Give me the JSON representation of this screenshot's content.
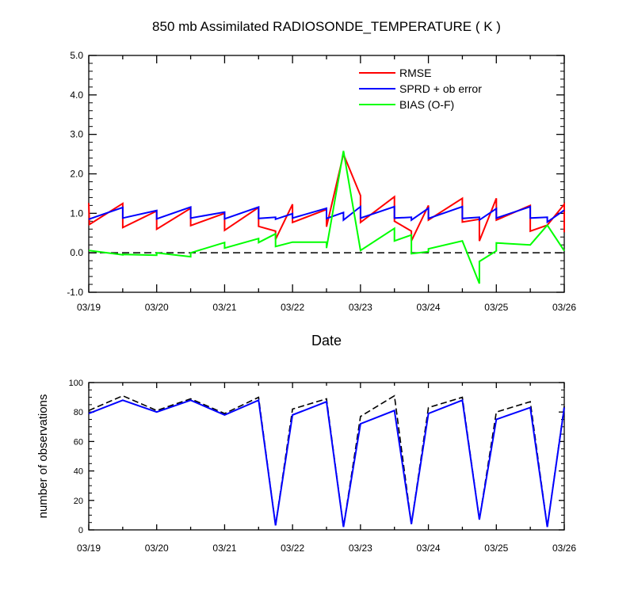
{
  "chart_data": [
    {
      "type": "line",
      "title": "850 mb Assimilated RADIOSONDE_TEMPERATURE ( K )",
      "xlabel": "Date",
      "ylabel": "",
      "x_tick_labels": [
        "03/19",
        "03/20",
        "03/21",
        "03/22",
        "03/23",
        "03/24",
        "03/25",
        "03/26"
      ],
      "xlim": [
        0,
        7
      ],
      "ylim": [
        -1.0,
        5.0
      ],
      "y_ticks": [
        -1.0,
        0.0,
        1.0,
        2.0,
        3.0,
        4.0,
        5.0
      ],
      "y_tick_labels": [
        "-1.0",
        "0.0",
        "1.0",
        "2.0",
        "3.0",
        "4.0",
        "5.0"
      ],
      "reference_line": 0.0,
      "legend_position": "top-right",
      "series": [
        {
          "name": "RMSE",
          "color": "#ff0000",
          "points": [
            [
              0.0,
              1.26
            ],
            [
              0.01,
              0.72
            ],
            [
              0.5,
              1.25
            ],
            [
              0.5,
              0.64
            ],
            [
              1.0,
              1.06
            ],
            [
              1.0,
              0.6
            ],
            [
              1.5,
              1.13
            ],
            [
              1.5,
              0.69
            ],
            [
              2.0,
              1.0
            ],
            [
              2.0,
              0.57
            ],
            [
              2.5,
              1.15
            ],
            [
              2.5,
              0.67
            ],
            [
              2.75,
              0.55
            ],
            [
              2.75,
              0.34
            ],
            [
              3.0,
              1.23
            ],
            [
              3.0,
              0.77
            ],
            [
              3.5,
              1.1
            ],
            [
              3.5,
              0.66
            ],
            [
              3.75,
              2.5
            ],
            [
              4.0,
              1.45
            ],
            [
              4.0,
              0.77
            ],
            [
              4.5,
              1.42
            ],
            [
              4.5,
              0.8
            ],
            [
              4.75,
              0.55
            ],
            [
              4.75,
              0.3
            ],
            [
              5.0,
              1.2
            ],
            [
              5.0,
              0.83
            ],
            [
              5.5,
              1.38
            ],
            [
              5.5,
              0.78
            ],
            [
              5.75,
              0.85
            ],
            [
              5.75,
              0.3
            ],
            [
              6.0,
              1.38
            ],
            [
              6.0,
              0.83
            ],
            [
              6.5,
              1.2
            ],
            [
              6.5,
              0.55
            ],
            [
              6.75,
              0.7
            ],
            [
              7.0,
              1.23
            ],
            [
              7.0,
              0.52
            ]
          ]
        },
        {
          "name": "SPRD + ob error",
          "color": "#0000ff",
          "points": [
            [
              0.0,
              0.85
            ],
            [
              0.5,
              1.15
            ],
            [
              0.5,
              0.88
            ],
            [
              1.0,
              1.07
            ],
            [
              1.0,
              0.86
            ],
            [
              1.5,
              1.16
            ],
            [
              1.5,
              0.88
            ],
            [
              2.0,
              1.03
            ],
            [
              2.0,
              0.86
            ],
            [
              2.5,
              1.16
            ],
            [
              2.5,
              0.87
            ],
            [
              2.75,
              0.9
            ],
            [
              2.75,
              0.85
            ],
            [
              3.0,
              0.99
            ],
            [
              3.0,
              0.88
            ],
            [
              3.5,
              1.13
            ],
            [
              3.5,
              0.87
            ],
            [
              3.75,
              1.02
            ],
            [
              3.75,
              0.83
            ],
            [
              4.0,
              1.17
            ],
            [
              4.0,
              0.88
            ],
            [
              4.5,
              1.17
            ],
            [
              4.5,
              0.88
            ],
            [
              4.75,
              0.9
            ],
            [
              4.75,
              0.83
            ],
            [
              5.0,
              1.13
            ],
            [
              5.0,
              0.87
            ],
            [
              5.5,
              1.17
            ],
            [
              5.5,
              0.87
            ],
            [
              5.75,
              0.9
            ],
            [
              5.75,
              0.83
            ],
            [
              6.0,
              1.12
            ],
            [
              6.0,
              0.88
            ],
            [
              6.5,
              1.17
            ],
            [
              6.5,
              0.88
            ],
            [
              6.75,
              0.9
            ],
            [
              6.75,
              0.78
            ],
            [
              7.0,
              1.08
            ]
          ]
        },
        {
          "name": "BIAS (O-F)",
          "color": "#00ff00",
          "points": [
            [
              0.0,
              0.06
            ],
            [
              0.5,
              -0.05
            ],
            [
              0.5,
              -0.04
            ],
            [
              1.0,
              -0.06
            ],
            [
              1.0,
              0.0
            ],
            [
              1.5,
              -0.1
            ],
            [
              1.5,
              0.0
            ],
            [
              2.0,
              0.26
            ],
            [
              2.0,
              0.12
            ],
            [
              2.5,
              0.36
            ],
            [
              2.5,
              0.26
            ],
            [
              2.75,
              0.48
            ],
            [
              2.75,
              0.16
            ],
            [
              3.0,
              0.27
            ],
            [
              3.0,
              0.27
            ],
            [
              3.5,
              0.27
            ],
            [
              3.5,
              0.12
            ],
            [
              3.75,
              2.58
            ],
            [
              4.0,
              0.06
            ],
            [
              4.5,
              0.62
            ],
            [
              4.5,
              0.3
            ],
            [
              4.75,
              0.45
            ],
            [
              4.75,
              -0.02
            ],
            [
              5.0,
              0.03
            ],
            [
              5.0,
              0.1
            ],
            [
              5.5,
              0.3
            ],
            [
              5.75,
              -0.78
            ],
            [
              5.75,
              -0.22
            ],
            [
              6.0,
              0.05
            ],
            [
              6.0,
              0.25
            ],
            [
              6.5,
              0.2
            ],
            [
              6.75,
              0.7
            ],
            [
              7.0,
              0.05
            ]
          ]
        }
      ]
    },
    {
      "type": "line",
      "title": "",
      "xlabel": "",
      "ylabel": "number of observations",
      "x_tick_labels": [
        "03/19",
        "03/20",
        "03/21",
        "03/22",
        "03/23",
        "03/24",
        "03/25",
        "03/26"
      ],
      "xlim": [
        0,
        7
      ],
      "ylim": [
        0,
        100
      ],
      "y_ticks": [
        0,
        20,
        40,
        60,
        80,
        100
      ],
      "y_tick_labels": [
        "0",
        "20",
        "40",
        "60",
        "80",
        "100"
      ],
      "series": [
        {
          "name": "",
          "color": "#000000",
          "dashed": true,
          "points": [
            [
              0.0,
              81
            ],
            [
              0.5,
              91
            ],
            [
              1.0,
              81
            ],
            [
              1.5,
              89
            ],
            [
              2.0,
              79
            ],
            [
              2.5,
              90
            ],
            [
              2.75,
              3
            ],
            [
              3.0,
              82
            ],
            [
              3.5,
              89
            ],
            [
              3.75,
              2
            ],
            [
              4.0,
              77
            ],
            [
              4.5,
              91
            ],
            [
              4.75,
              4
            ],
            [
              5.0,
              83
            ],
            [
              5.5,
              90
            ],
            [
              5.75,
              7
            ],
            [
              6.0,
              80
            ],
            [
              6.5,
              87
            ],
            [
              6.75,
              2
            ],
            [
              7.0,
              84
            ]
          ]
        },
        {
          "name": "",
          "color": "#0000ff",
          "points": [
            [
              0.0,
              79
            ],
            [
              0.5,
              88
            ],
            [
              1.0,
              80
            ],
            [
              1.5,
              88
            ],
            [
              2.0,
              78
            ],
            [
              2.5,
              88
            ],
            [
              2.75,
              3
            ],
            [
              3.0,
              78
            ],
            [
              3.5,
              87
            ],
            [
              3.75,
              2
            ],
            [
              4.0,
              72
            ],
            [
              4.5,
              81
            ],
            [
              4.75,
              4
            ],
            [
              5.0,
              79
            ],
            [
              5.5,
              88
            ],
            [
              5.75,
              7
            ],
            [
              6.0,
              75
            ],
            [
              6.5,
              83
            ],
            [
              6.75,
              2
            ],
            [
              7.0,
              83
            ]
          ]
        }
      ]
    }
  ]
}
